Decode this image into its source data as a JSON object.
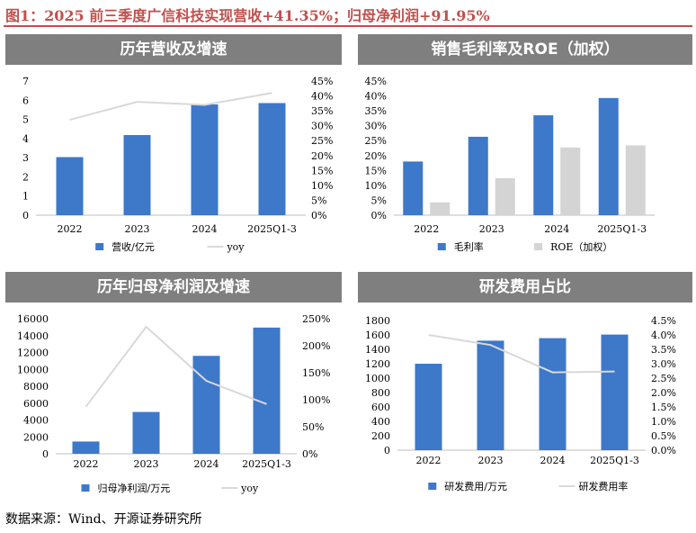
{
  "figure_title": "图1：2025 前三季度广信科技实现营收+41.35%；归母净利润+91.95%",
  "source": "数据来源：Wind、开源证券研究所",
  "colors": {
    "bar_blue": "#3d78c9",
    "bar_gray": "#d4d4d4",
    "line_gray": "#d9d9d9",
    "header_gray": "#7f7f7f",
    "title_red": "#c0504d"
  },
  "chart_data": [
    {
      "title": "历年营收及增速",
      "type": "bar",
      "categories": [
        "2022",
        "2023",
        "2024",
        "2025Q1-3"
      ],
      "series": [
        {
          "name": "营收/亿元",
          "kind": "bar",
          "axis": "left",
          "values": [
            3.03,
            4.18,
            5.78,
            5.85
          ]
        },
        {
          "name": "yoy",
          "kind": "line",
          "axis": "right",
          "values": [
            0.32,
            0.38,
            0.37,
            0.41
          ]
        }
      ],
      "ylim": [
        0,
        7
      ],
      "yticks": [
        "0",
        "1",
        "2",
        "3",
        "4",
        "5",
        "6",
        "7"
      ],
      "y2lim": [
        0,
        0.45
      ],
      "y2ticks": [
        "0%",
        "5%",
        "10%",
        "15%",
        "20%",
        "25%",
        "30%",
        "35%",
        "40%",
        "45%"
      ]
    },
    {
      "title": "销售毛利率及ROE（加权）",
      "type": "bar",
      "categories": [
        "2022",
        "2023",
        "2024",
        "2025Q1-3"
      ],
      "series": [
        {
          "name": "毛利率",
          "kind": "bar",
          "axis": "left",
          "values": [
            0.18,
            0.263,
            0.335,
            0.393
          ]
        },
        {
          "name": "ROE（加权）",
          "kind": "bar2",
          "axis": "left",
          "values": [
            0.043,
            0.124,
            0.227,
            0.234
          ]
        }
      ],
      "ylim": [
        0,
        0.45
      ],
      "yticks": [
        "0%",
        "5%",
        "10%",
        "15%",
        "20%",
        "25%",
        "30%",
        "35%",
        "40%",
        "45%"
      ]
    },
    {
      "title": "历年归母净利润及增速",
      "type": "bar",
      "categories": [
        "2022",
        "2023",
        "2024",
        "2025Q1-3"
      ],
      "series": [
        {
          "name": "归母净利润/万元",
          "kind": "bar",
          "axis": "left",
          "values": [
            1450,
            4950,
            11600,
            14950
          ]
        },
        {
          "name": "yoy",
          "kind": "line",
          "axis": "right",
          "values": [
            0.87,
            2.35,
            1.35,
            0.92
          ]
        }
      ],
      "ylim": [
        0,
        16000
      ],
      "yticks": [
        "0",
        "2000",
        "4000",
        "6000",
        "8000",
        "10000",
        "12000",
        "14000",
        "16000"
      ],
      "y2lim": [
        0,
        2.5
      ],
      "y2ticks": [
        "0%",
        "50%",
        "100%",
        "150%",
        "200%",
        "250%"
      ]
    },
    {
      "title": "研发费用占比",
      "type": "bar",
      "categories": [
        "2022",
        "2023",
        "2024",
        "2025Q1-3"
      ],
      "series": [
        {
          "name": "研发费用/万元",
          "kind": "bar",
          "axis": "left",
          "values": [
            1200,
            1520,
            1555,
            1605
          ]
        },
        {
          "name": "研发费用率",
          "kind": "line",
          "axis": "right",
          "values": [
            0.04,
            0.0365,
            0.027,
            0.0273
          ]
        }
      ],
      "ylim": [
        0,
        1800
      ],
      "yticks": [
        "0",
        "200",
        "400",
        "600",
        "800",
        "1000",
        "1200",
        "1400",
        "1600",
        "1800"
      ],
      "y2lim": [
        0,
        0.045
      ],
      "y2ticks": [
        "0.0%",
        "0.5%",
        "1.0%",
        "1.5%",
        "2.0%",
        "2.5%",
        "3.0%",
        "3.5%",
        "4.0%",
        "4.5%"
      ]
    }
  ]
}
